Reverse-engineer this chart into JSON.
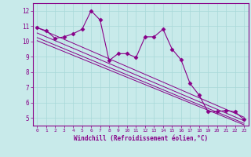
{
  "x": [
    0,
    1,
    2,
    3,
    4,
    5,
    6,
    7,
    8,
    9,
    10,
    11,
    12,
    13,
    14,
    15,
    16,
    17,
    18,
    19,
    20,
    21,
    22,
    23
  ],
  "y": [
    10.9,
    10.7,
    10.2,
    10.3,
    10.5,
    10.8,
    12.0,
    11.4,
    8.75,
    9.2,
    9.2,
    8.95,
    10.3,
    10.3,
    10.8,
    9.5,
    8.8,
    7.25,
    6.5,
    5.4,
    5.4,
    5.5,
    5.4,
    4.9
  ],
  "line_color": "#880088",
  "marker": "D",
  "marker_size": 2.5,
  "bg_color": "#c8eaea",
  "grid_color": "#a8d8d8",
  "xlabel": "Windchill (Refroidissement éolien,°C)",
  "ylim": [
    4.5,
    12.5
  ],
  "xlim": [
    -0.5,
    23.5
  ],
  "yticks": [
    5,
    6,
    7,
    8,
    9,
    10,
    11,
    12
  ],
  "xticks": [
    0,
    1,
    2,
    3,
    4,
    5,
    6,
    7,
    8,
    9,
    10,
    11,
    12,
    13,
    14,
    15,
    16,
    17,
    18,
    19,
    20,
    21,
    22,
    23
  ],
  "trend_lines": [
    {
      "x0": 0,
      "y0": 10.9,
      "x1": 23,
      "y1": 5.05
    },
    {
      "x0": 0,
      "y0": 10.55,
      "x1": 23,
      "y1": 4.82
    },
    {
      "x0": 0,
      "y0": 10.25,
      "x1": 23,
      "y1": 4.65
    },
    {
      "x0": 0,
      "y0": 10.05,
      "x1": 23,
      "y1": 4.55
    }
  ]
}
